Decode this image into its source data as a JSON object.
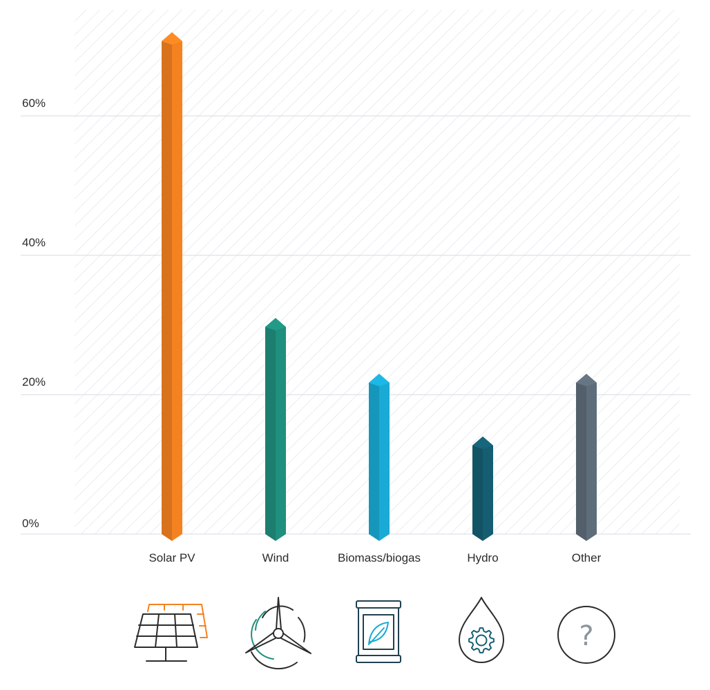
{
  "chart_data": {
    "type": "bar",
    "categories": [
      "Solar PV",
      "Wind",
      "Biomass/biogas",
      "Hydro",
      "Other"
    ],
    "values": [
      72,
      31,
      23,
      14,
      23
    ],
    "colors": [
      "#f58220",
      "#1f8f7e",
      "#1aaad6",
      "#155e72",
      "#5e6d7a"
    ],
    "yticks": [
      "0%",
      "20%",
      "40%",
      "60%"
    ],
    "ylim": [
      0,
      75
    ],
    "grid": true,
    "legend": "none"
  },
  "icons": [
    "solar-panel-icon",
    "wind-turbine-icon",
    "biomass-barrel-icon",
    "hydro-drop-icon",
    "question-icon"
  ],
  "icon_colors": {
    "dark": "#2b2b2b",
    "navy": "#20404f",
    "orange": "#f58220",
    "teal": "#1f8f7e",
    "cyan": "#1aaad6",
    "hydro": "#155e72",
    "grey": "#8a96a0"
  },
  "other_icon_glyph": "?"
}
